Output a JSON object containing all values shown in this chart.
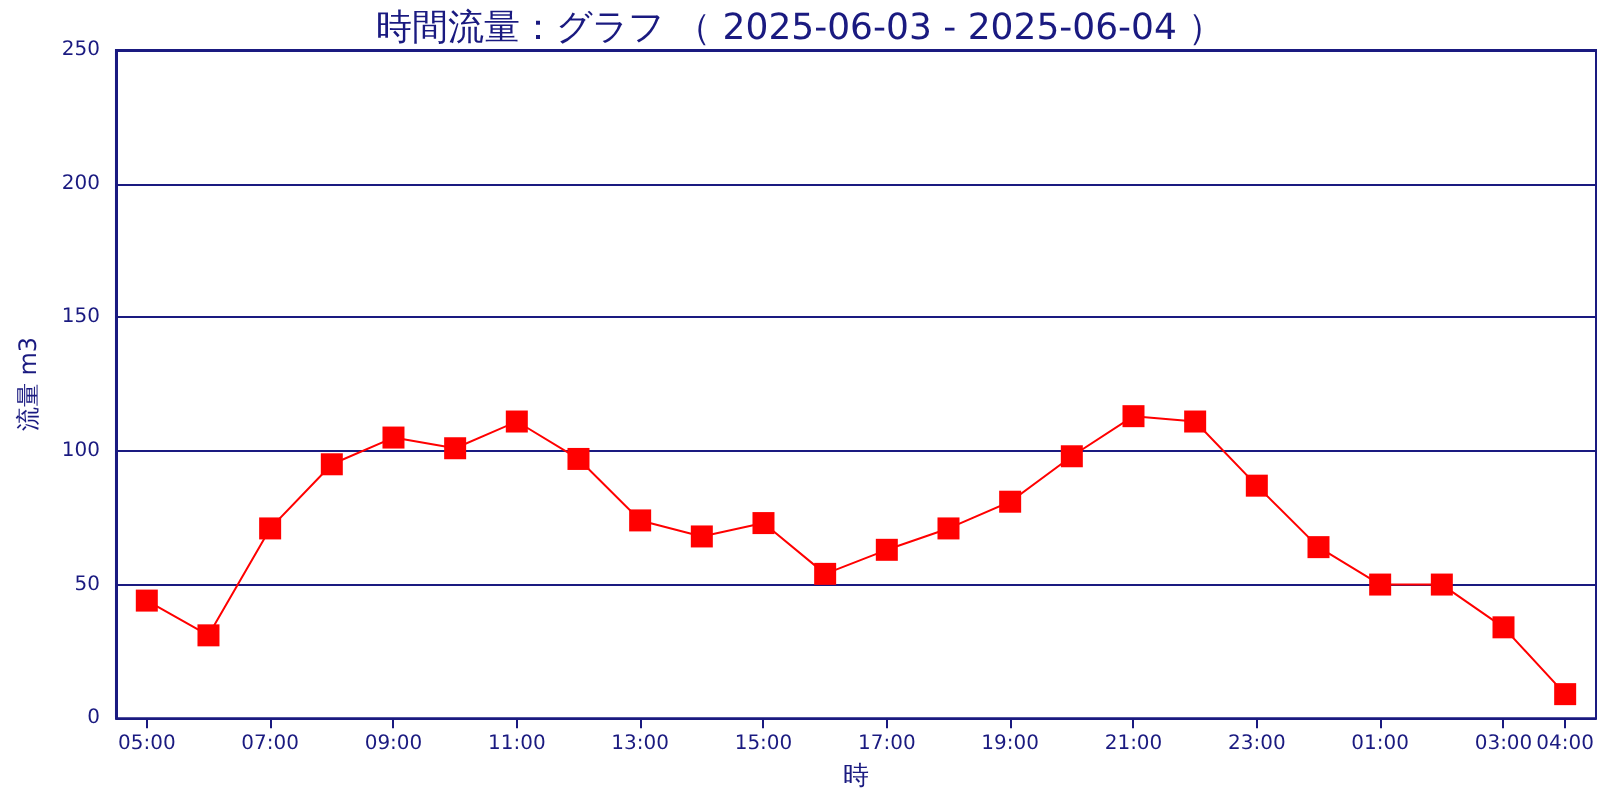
{
  "chart_data": {
    "type": "line",
    "title": "時間流量：グラフ （ 2025-06-03 - 2025-06-04 ）",
    "xlabel": "時",
    "ylabel": "流量 m3",
    "categories": [
      "05:00",
      null,
      "07:00",
      null,
      "09:00",
      null,
      "11:00",
      null,
      "13:00",
      null,
      "15:00",
      null,
      "17:00",
      null,
      "19:00",
      null,
      "21:00",
      null,
      "23:00",
      null,
      "01:00",
      null,
      "03:00",
      "04:00"
    ],
    "series": [
      {
        "color": "#ff0000",
        "values": [
          44,
          31,
          71,
          95,
          105,
          101,
          111,
          97,
          74,
          68,
          73,
          54,
          63,
          71,
          81,
          98,
          113,
          111,
          87,
          64,
          50,
          50,
          34,
          9
        ]
      }
    ],
    "ylim": [
      0,
      250
    ],
    "yticks": [
      0,
      50,
      100,
      150,
      200,
      250
    ],
    "grid": "y",
    "marker": "square",
    "line_style": "solid"
  }
}
